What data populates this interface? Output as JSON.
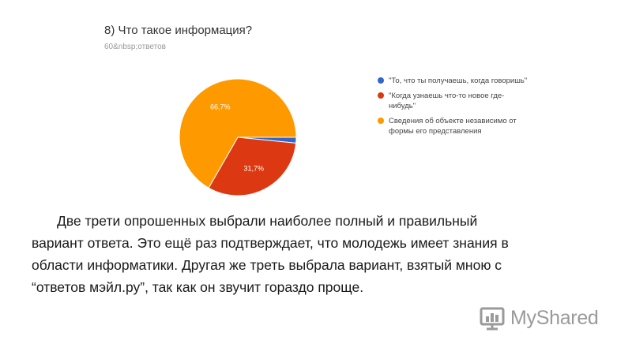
{
  "chart_data": {
    "type": "pie",
    "title": "8) Что такое информация?",
    "subtitle": "60&nbsp;ответов",
    "slices": [
      {
        "label": "\"То, что ты получаешь, когда говоришь\"",
        "value": 1.6,
        "color": "#3366cc",
        "data_label": ""
      },
      {
        "label": "\"Когда узнаешь что-то новое где-нибудь\"",
        "value": 31.7,
        "color": "#dc3912",
        "data_label": "31,7%"
      },
      {
        "label": "Сведения об объекте независимо от формы его представления",
        "value": 66.7,
        "color": "#ff9900",
        "data_label": "66,7%"
      }
    ],
    "legend_position": "right"
  },
  "text": {
    "line1": "Две трети опрошенных выбрали наиболее полный и правильный",
    "line2": "вариант ответа. Это ещё раз подтверждает, что молодежь имеет знания в",
    "line3": "области информатики. Другая же треть выбрала вариант, взятый мною с",
    "line4": "“ответов мэйл.ру”, так как он звучит гораздо проще."
  },
  "watermark": {
    "text": "MyShared",
    "color": "#9a9a9a"
  }
}
